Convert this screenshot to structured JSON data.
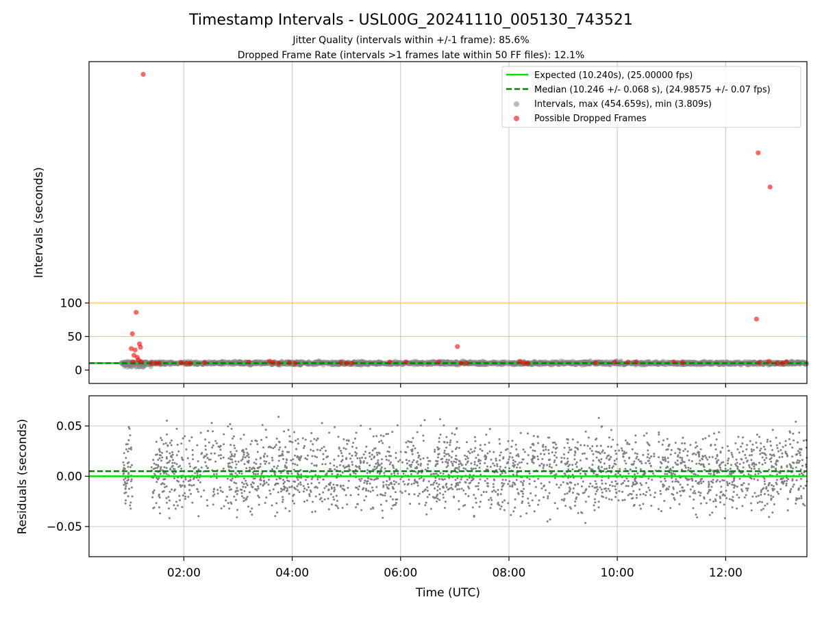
{
  "title": "Timestamp Intervals - USL00G_20241110_005130_743521",
  "subtitle_jitter": "Jitter Quality (intervals within +/-1 frame): 85.6%",
  "subtitle_dropped": "Dropped Frame Rate (intervals >1 frames late within 50 FF files): 12.1%",
  "colors": {
    "expected": "#00e000",
    "median": "#008000",
    "intervals": "#808080",
    "dropped": "#ff0000",
    "threshold": "#ffa500"
  },
  "chart_data": [
    {
      "type": "scatter",
      "panel": "top",
      "ylabel": "Intervals (seconds)",
      "xlabel": "",
      "x_ticks": [
        "02:00",
        "04:00",
        "06:00",
        "08:00",
        "10:00",
        "12:00"
      ],
      "x_tick_hours": [
        2,
        4,
        6,
        8,
        10,
        12
      ],
      "xlim_hours": [
        0.25,
        13.5
      ],
      "y_ticks": [
        0,
        50,
        100
      ],
      "ylim": [
        -20,
        460
      ],
      "grid": "vertical",
      "legend_position": "top-right",
      "threshold_lines": [
        50,
        100
      ],
      "expected_interval": 10.24,
      "median_interval": 10.246,
      "legend": {
        "expected": "Expected (10.240s), (25.00000 fps)",
        "median": "Median (10.246 +/- 0.068 s), (24.98575 +/- 0.07 fps)",
        "intervals": "Intervals, max (454.659s), min (3.809s)",
        "dropped": "Possible Dropped Frames"
      },
      "intervals_range_hours": [
        0.85,
        13.5
      ],
      "dropped_frames": [
        {
          "x": 1.25,
          "y": 441
        },
        {
          "x": 1.12,
          "y": 86
        },
        {
          "x": 1.05,
          "y": 54
        },
        {
          "x": 1.18,
          "y": 39
        },
        {
          "x": 1.2,
          "y": 34
        },
        {
          "x": 1.03,
          "y": 32
        },
        {
          "x": 1.1,
          "y": 30
        },
        {
          "x": 1.08,
          "y": 22
        },
        {
          "x": 1.14,
          "y": 19
        },
        {
          "x": 1.16,
          "y": 15
        },
        {
          "x": 1.06,
          "y": 12
        },
        {
          "x": 1.22,
          "y": 12
        },
        {
          "x": 1.4,
          "y": 10
        },
        {
          "x": 1.48,
          "y": 10
        },
        {
          "x": 1.55,
          "y": 10
        },
        {
          "x": 1.95,
          "y": 11
        },
        {
          "x": 2.05,
          "y": 10
        },
        {
          "x": 2.12,
          "y": 10
        },
        {
          "x": 2.38,
          "y": 11
        },
        {
          "x": 3.2,
          "y": 12
        },
        {
          "x": 3.58,
          "y": 13
        },
        {
          "x": 3.65,
          "y": 11
        },
        {
          "x": 3.75,
          "y": 10
        },
        {
          "x": 3.95,
          "y": 11
        },
        {
          "x": 4.05,
          "y": 10
        },
        {
          "x": 4.9,
          "y": 11
        },
        {
          "x": 5.0,
          "y": 10
        },
        {
          "x": 5.1,
          "y": 10
        },
        {
          "x": 5.8,
          "y": 12
        },
        {
          "x": 6.1,
          "y": 12
        },
        {
          "x": 6.7,
          "y": 12
        },
        {
          "x": 7.05,
          "y": 35
        },
        {
          "x": 7.12,
          "y": 10
        },
        {
          "x": 7.22,
          "y": 10
        },
        {
          "x": 8.2,
          "y": 13
        },
        {
          "x": 8.28,
          "y": 10
        },
        {
          "x": 8.35,
          "y": 10
        },
        {
          "x": 9.6,
          "y": 11
        },
        {
          "x": 9.95,
          "y": 12
        },
        {
          "x": 10.2,
          "y": 12
        },
        {
          "x": 10.35,
          "y": 12
        },
        {
          "x": 11.05,
          "y": 12
        },
        {
          "x": 11.2,
          "y": 11
        },
        {
          "x": 12.6,
          "y": 324
        },
        {
          "x": 12.57,
          "y": 76
        },
        {
          "x": 12.82,
          "y": 273
        },
        {
          "x": 12.62,
          "y": 11
        },
        {
          "x": 12.8,
          "y": 13
        },
        {
          "x": 12.95,
          "y": 10
        },
        {
          "x": 13.05,
          "y": 10
        },
        {
          "x": 13.12,
          "y": 12
        }
      ]
    },
    {
      "type": "scatter",
      "panel": "bottom",
      "ylabel": "Residuals (seconds)",
      "xlabel": "Time (UTC)",
      "x_ticks": [
        "02:00",
        "04:00",
        "06:00",
        "08:00",
        "10:00",
        "12:00"
      ],
      "x_tick_hours": [
        2,
        4,
        6,
        8,
        10,
        12
      ],
      "xlim_hours": [
        0.25,
        13.5
      ],
      "y_ticks": [
        "0.05",
        "0.00",
        "−0.05"
      ],
      "y_tick_values": [
        0.05,
        0.0,
        -0.05
      ],
      "ylim": [
        -0.08,
        0.08
      ],
      "grid": "both",
      "expected_residual": 0.0,
      "median_residual": 0.005,
      "residual_spread": 0.02,
      "point_count": 2600
    }
  ]
}
